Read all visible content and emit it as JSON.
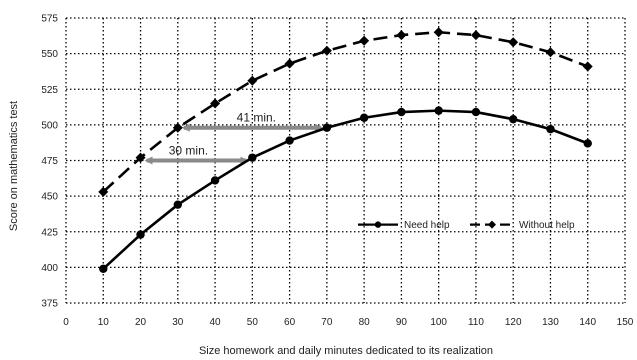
{
  "chart_data": {
    "type": "line",
    "xlabel": "Size homework and daily minutes dedicated to its realization",
    "ylabel": "Score on mathematics test",
    "xlim": [
      0,
      150
    ],
    "ylim": [
      375,
      575
    ],
    "x_ticks": [
      0,
      10,
      20,
      30,
      40,
      50,
      60,
      70,
      80,
      90,
      100,
      110,
      120,
      130,
      140,
      150
    ],
    "y_ticks": [
      375,
      400,
      425,
      450,
      475,
      500,
      525,
      550,
      575
    ],
    "grid": true,
    "legend_position": "right-center",
    "series": [
      {
        "name": "Need help",
        "line_style": "solid",
        "color": "#000000",
        "x": [
          10,
          20,
          30,
          40,
          50,
          60,
          70,
          80,
          90,
          100,
          110,
          120,
          130,
          140
        ],
        "y": [
          399,
          423,
          444,
          461,
          477,
          489,
          498,
          505,
          509,
          510,
          509,
          504,
          497,
          487
        ]
      },
      {
        "name": "Without help",
        "line_style": "dashed",
        "color": "#000000",
        "x": [
          10,
          20,
          30,
          40,
          50,
          60,
          70,
          80,
          90,
          100,
          110,
          120,
          130,
          140
        ],
        "y": [
          453,
          477,
          498,
          515,
          531,
          543,
          552,
          559,
          563,
          565,
          563,
          558,
          551,
          541
        ]
      }
    ],
    "annotations": [
      {
        "label": "41 min.",
        "from": [
          30,
          498
        ],
        "to": [
          70,
          498
        ]
      },
      {
        "label": "30 min.",
        "from": [
          20,
          475
        ],
        "to": [
          50,
          475
        ]
      }
    ]
  },
  "colors": {
    "line": "#000000",
    "arrow": "#8a8a8a",
    "grid": "#000000"
  }
}
